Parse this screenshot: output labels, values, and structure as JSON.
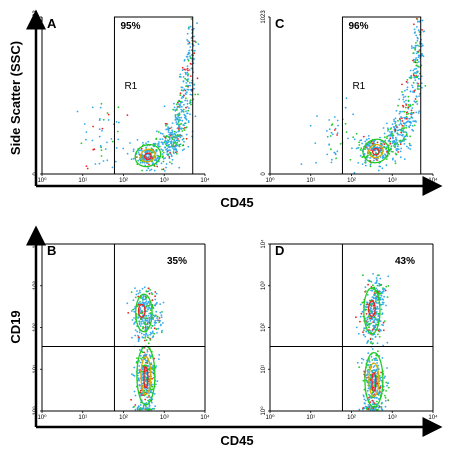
{
  "chart_data": {
    "type": "scatter",
    "colors": {
      "axis": "#000000",
      "density_low": "#33aaee",
      "density_mid": "#22cc22",
      "density_high": "#ee2222",
      "contour": "#663300"
    },
    "shared_axis_labels": {
      "top_xlabel": "CD45",
      "bottom_xlabel": "CD45",
      "top_ylabel": "Side Scatter (SSC)",
      "bottom_ylabel": "CD19"
    },
    "panels": [
      {
        "id": "A",
        "label": "A",
        "type": "scatter",
        "x_scale": "log",
        "xlim": [
          1,
          10000
        ],
        "x_ticks": [
          {
            "v": 1,
            "t": "10⁰"
          },
          {
            "v": 10,
            "t": "10¹"
          },
          {
            "v": 100,
            "t": "10²"
          },
          {
            "v": 1000,
            "t": "10³"
          },
          {
            "v": 10000,
            "t": "10⁴"
          }
        ],
        "y_scale": "linear",
        "ylim": [
          0,
          1023
        ],
        "y_ticks": [
          {
            "v": 0,
            "t": "0"
          },
          {
            "v": 1023,
            "t": "1023"
          }
        ],
        "gate": {
          "type": "rectangle",
          "name": "R1",
          "x": [
            60,
            5000
          ],
          "y": [
            0,
            1023
          ],
          "percent": "95%"
        },
        "populations": [
          {
            "x_log": 2.62,
            "y": 120,
            "n": 200,
            "sx": 0.18,
            "sy": 40
          },
          {
            "x_log": 3.1,
            "y": 200,
            "n": 160,
            "sx": 0.15,
            "sy": 60
          },
          {
            "x_log": 3.35,
            "y": 350,
            "n": 120,
            "sx": 0.12,
            "sy": 90
          },
          {
            "x_log": 3.55,
            "y": 550,
            "n": 90,
            "sx": 0.1,
            "sy": 110
          },
          {
            "x_log": 3.65,
            "y": 800,
            "n": 70,
            "sx": 0.08,
            "sy": 120
          },
          {
            "x_log": 1.5,
            "y": 250,
            "n": 50,
            "sx": 0.28,
            "sy": 130
          }
        ],
        "contours": [
          {
            "x_log": 2.6,
            "y": 120,
            "rx": 0.32,
            "ry": 70,
            "color": "#22cc22"
          },
          {
            "x_log": 2.6,
            "y": 120,
            "rx": 0.18,
            "ry": 40,
            "color": "#ddaa00"
          },
          {
            "x_log": 2.6,
            "y": 115,
            "rx": 0.08,
            "ry": 20,
            "color": "#ee2222"
          }
        ]
      },
      {
        "id": "C",
        "label": "C",
        "type": "scatter",
        "x_scale": "log",
        "xlim": [
          1,
          10000
        ],
        "x_ticks": [
          {
            "v": 1,
            "t": "10⁰"
          },
          {
            "v": 10,
            "t": "10¹"
          },
          {
            "v": 100,
            "t": "10²"
          },
          {
            "v": 1000,
            "t": "10³"
          },
          {
            "v": 10000,
            "t": "10⁴"
          }
        ],
        "y_scale": "linear",
        "ylim": [
          0,
          1023
        ],
        "y_ticks": [
          {
            "v": 0,
            "t": "0"
          },
          {
            "v": 1023,
            "t": "1023"
          }
        ],
        "gate": {
          "type": "rectangle",
          "name": "R1",
          "x": [
            60,
            5000
          ],
          "y": [
            0,
            1023
          ],
          "percent": "96%"
        },
        "populations": [
          {
            "x_log": 2.55,
            "y": 150,
            "n": 200,
            "sx": 0.18,
            "sy": 45
          },
          {
            "x_log": 3.05,
            "y": 230,
            "n": 150,
            "sx": 0.15,
            "sy": 60
          },
          {
            "x_log": 3.35,
            "y": 380,
            "n": 110,
            "sx": 0.12,
            "sy": 90
          },
          {
            "x_log": 3.55,
            "y": 620,
            "n": 90,
            "sx": 0.1,
            "sy": 110
          },
          {
            "x_log": 3.65,
            "y": 850,
            "n": 60,
            "sx": 0.07,
            "sy": 100
          },
          {
            "x_log": 1.6,
            "y": 230,
            "n": 45,
            "sx": 0.25,
            "sy": 110
          }
        ],
        "contours": [
          {
            "x_log": 2.6,
            "y": 150,
            "rx": 0.32,
            "ry": 75,
            "color": "#22cc22"
          },
          {
            "x_log": 2.6,
            "y": 150,
            "rx": 0.18,
            "ry": 42,
            "color": "#ddaa00"
          },
          {
            "x_log": 2.6,
            "y": 145,
            "rx": 0.08,
            "ry": 20,
            "color": "#ee2222"
          }
        ]
      },
      {
        "id": "B",
        "label": "B",
        "type": "scatter",
        "x_scale": "log",
        "xlim": [
          1,
          10000
        ],
        "x_ticks": [
          {
            "v": 1,
            "t": "10⁰"
          },
          {
            "v": 10,
            "t": "10¹"
          },
          {
            "v": 100,
            "t": "10²"
          },
          {
            "v": 1000,
            "t": "10³"
          },
          {
            "v": 10000,
            "t": "10⁴"
          }
        ],
        "y_scale": "log",
        "ylim": [
          1,
          10000
        ],
        "y_ticks": [
          {
            "v": 1,
            "t": "10⁰"
          },
          {
            "v": 10,
            "t": "10¹"
          },
          {
            "v": 100,
            "t": "10²"
          },
          {
            "v": 1000,
            "t": "10³"
          },
          {
            "v": 10000,
            "t": "10⁴"
          }
        ],
        "quadrant": {
          "x": 60,
          "y": 35,
          "percent": "35%"
        },
        "populations": [
          {
            "x_log": 2.55,
            "y_log": 0.8,
            "n": 320,
            "sx": 0.13,
            "sy": 0.4
          },
          {
            "x_log": 2.48,
            "y_log": 2.35,
            "n": 200,
            "sx": 0.13,
            "sy": 0.3
          },
          {
            "x_log": 2.75,
            "y_log": 2.25,
            "n": 80,
            "sx": 0.1,
            "sy": 0.25
          },
          {
            "x_log": 2.5,
            "y_log": 0.05,
            "n": 60,
            "sx": 0.12,
            "sy": 0.04
          }
        ],
        "contours": [
          {
            "x_log": 2.55,
            "y_log": 0.85,
            "rx": 0.22,
            "ry": 0.7,
            "color": "#22cc22"
          },
          {
            "x_log": 2.55,
            "y_log": 0.85,
            "rx": 0.12,
            "ry": 0.45,
            "color": "#ddaa00"
          },
          {
            "x_log": 2.55,
            "y_log": 0.8,
            "rx": 0.05,
            "ry": 0.25,
            "color": "#ee2222"
          },
          {
            "x_log": 2.5,
            "y_log": 2.35,
            "rx": 0.2,
            "ry": 0.45,
            "color": "#22cc22"
          },
          {
            "x_log": 2.45,
            "y_log": 2.4,
            "rx": 0.08,
            "ry": 0.15,
            "color": "#ee2222"
          }
        ]
      },
      {
        "id": "D",
        "label": "D",
        "type": "scatter",
        "x_scale": "log",
        "xlim": [
          1,
          10000
        ],
        "x_ticks": [
          {
            "v": 1,
            "t": "10⁰"
          },
          {
            "v": 10,
            "t": "10¹"
          },
          {
            "v": 100,
            "t": "10²"
          },
          {
            "v": 1000,
            "t": "10³"
          },
          {
            "v": 10000,
            "t": "10⁴"
          }
        ],
        "y_scale": "log",
        "ylim": [
          1,
          10000
        ],
        "y_ticks": [
          {
            "v": 1,
            "t": "10⁰"
          },
          {
            "v": 10,
            "t": "10¹"
          },
          {
            "v": 100,
            "t": "10²"
          },
          {
            "v": 1000,
            "t": "10³"
          },
          {
            "v": 10000,
            "t": "10⁴"
          }
        ],
        "quadrant": {
          "x": 60,
          "y": 35,
          "percent": "43%"
        },
        "populations": [
          {
            "x_log": 2.55,
            "y_log": 0.7,
            "n": 300,
            "sx": 0.13,
            "sy": 0.38
          },
          {
            "x_log": 2.5,
            "y_log": 2.3,
            "n": 240,
            "sx": 0.14,
            "sy": 0.32
          },
          {
            "x_log": 2.65,
            "y_log": 2.8,
            "n": 80,
            "sx": 0.1,
            "sy": 0.2
          },
          {
            "x_log": 2.5,
            "y_log": 0.05,
            "n": 60,
            "sx": 0.12,
            "sy": 0.04
          }
        ],
        "contours": [
          {
            "x_log": 2.55,
            "y_log": 0.75,
            "rx": 0.22,
            "ry": 0.65,
            "color": "#22cc22"
          },
          {
            "x_log": 2.55,
            "y_log": 0.75,
            "rx": 0.12,
            "ry": 0.4,
            "color": "#ddaa00"
          },
          {
            "x_log": 2.55,
            "y_log": 0.7,
            "rx": 0.05,
            "ry": 0.22,
            "color": "#ee2222"
          },
          {
            "x_log": 2.5,
            "y_log": 2.4,
            "rx": 0.2,
            "ry": 0.55,
            "color": "#22cc22"
          },
          {
            "x_log": 2.5,
            "y_log": 2.45,
            "rx": 0.08,
            "ry": 0.18,
            "color": "#ee2222"
          }
        ]
      }
    ]
  }
}
